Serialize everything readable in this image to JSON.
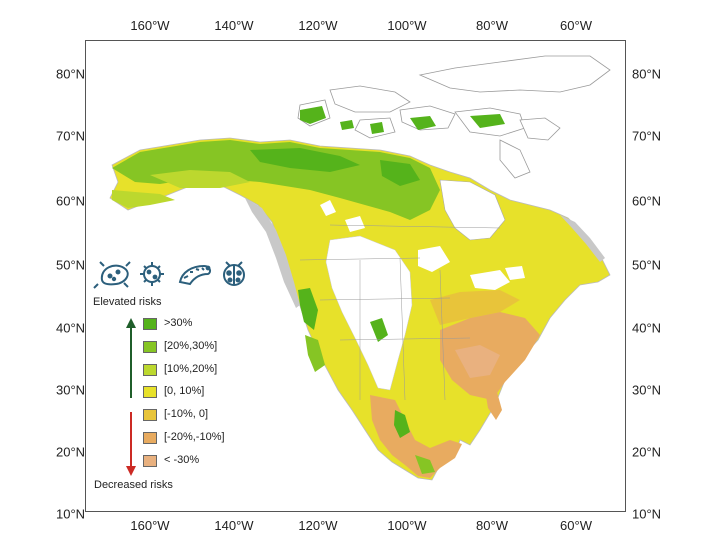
{
  "axes": {
    "longitude_labels": [
      "160°W",
      "140°W",
      "120°W",
      "100°W",
      "80°W",
      "60°W"
    ],
    "latitude_labels": [
      "80°N",
      "70°N",
      "60°N",
      "50°N",
      "40°N",
      "30°N",
      "20°N",
      "10°N"
    ]
  },
  "legend": {
    "top_label": "Elevated risks",
    "bottom_label": "Decreased risks",
    "up_arrow_color": "#1f5e2a",
    "down_arrow_color": "#cc2a24",
    "classes": [
      {
        "label": ">30%",
        "color": "#55b31b"
      },
      {
        "label": "[20%,30%]",
        "color": "#86c524"
      },
      {
        "label": "[10%,20%]",
        "color": "#bcd82e"
      },
      {
        "label": "[0, 10%]",
        "color": "#e7e12a"
      },
      {
        "label": "[-10%, 0]",
        "color": "#e8c43a"
      },
      {
        "label": "[-20%,-10%]",
        "color": "#e8ab60"
      },
      {
        "label": "< -30%",
        "color": "#e9b17f"
      }
    ]
  },
  "icons": [
    "bacteria-icon",
    "virus-icon",
    "caterpillar-icon",
    "ladybug-icon"
  ],
  "colors": {
    "no_data_land": "#c8c8c8",
    "boundary": "#999999",
    "icon": "#2c5f7c"
  }
}
